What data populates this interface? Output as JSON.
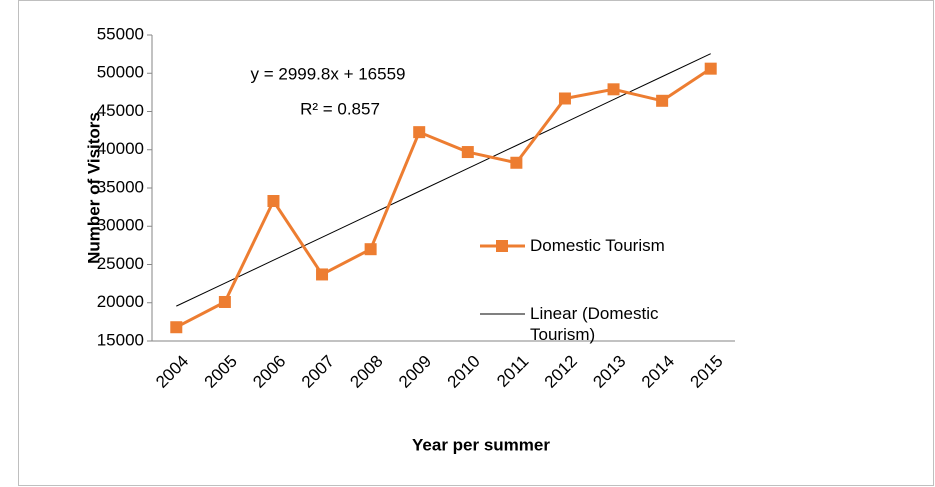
{
  "chart_data": {
    "type": "line",
    "x_label": "Year per summer",
    "y_label": "Number of Visitors",
    "categories": [
      "2004",
      "2005",
      "2006",
      "2007",
      "2008",
      "2009",
      "2010",
      "2011",
      "2012",
      "2013",
      "2014",
      "2015"
    ],
    "series": [
      {
        "name": "Domestic Tourism",
        "color": "#ed7d31",
        "marker": "square",
        "values": [
          16800,
          20100,
          33300,
          23700,
          27000,
          42300,
          39700,
          38300,
          46700,
          47900,
          46400,
          50600
        ]
      },
      {
        "name": "Linear (Domestic Tourism)",
        "color": "#000000",
        "marker": "none",
        "values": [
          19559,
          22559,
          25558,
          28558,
          31558,
          34558,
          37558,
          40557,
          43557,
          46557,
          49557,
          52557
        ]
      }
    ],
    "annotations": [
      "y = 2999.8x + 16559",
      "R² = 0.857"
    ],
    "ylim": [
      15000,
      55000
    ],
    "yticks": [
      15000,
      20000,
      25000,
      30000,
      35000,
      40000,
      45000,
      50000,
      55000
    ],
    "grid": false
  }
}
